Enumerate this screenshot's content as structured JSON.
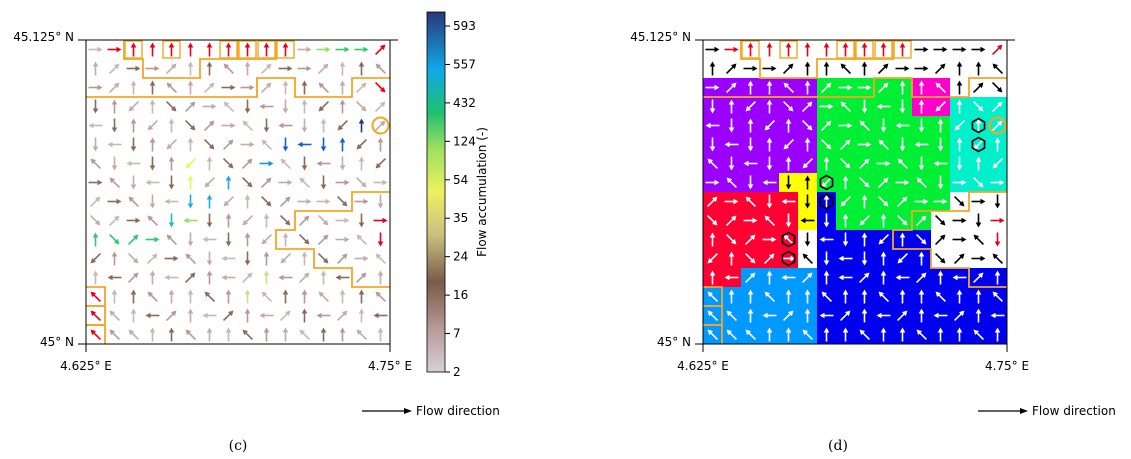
{
  "colors": {
    "boundary": "#f5a623",
    "outlet_red": "#e8001a",
    "white_arrow": "#ffffff",
    "black_arrow": "#000000",
    "basins": [
      "#9b00ff",
      "#00ee33",
      "#ff00cc",
      "#00f0cc",
      "#ffff00",
      "#ff0033",
      "#0000ee",
      "#0099ff"
    ]
  },
  "colorbar": {
    "title": "Flow accumulation (-)",
    "ticks": [
      "593",
      "557",
      "432",
      "124",
      "54",
      "35",
      "24",
      "16",
      "7",
      "2"
    ]
  },
  "panel_c": {
    "caption": "(c)",
    "lat_top": "45.125° N",
    "lat_bottom": "45° N",
    "lon_left": "4.625° E",
    "lon_right": "4.75° E",
    "legend": "Flow direction"
  },
  "panel_d": {
    "caption": "(d)",
    "lat_top": "45.125° N",
    "lat_bottom": "45° N",
    "lon_left": "4.625° E",
    "lon_right": "4.75° E",
    "legend": "Flow direction"
  },
  "icons": {
    "outlet_marker": "circle-outlet-icon",
    "sink_marker": "hexagon-icon",
    "arrow": "flow-arrow-icon"
  }
}
